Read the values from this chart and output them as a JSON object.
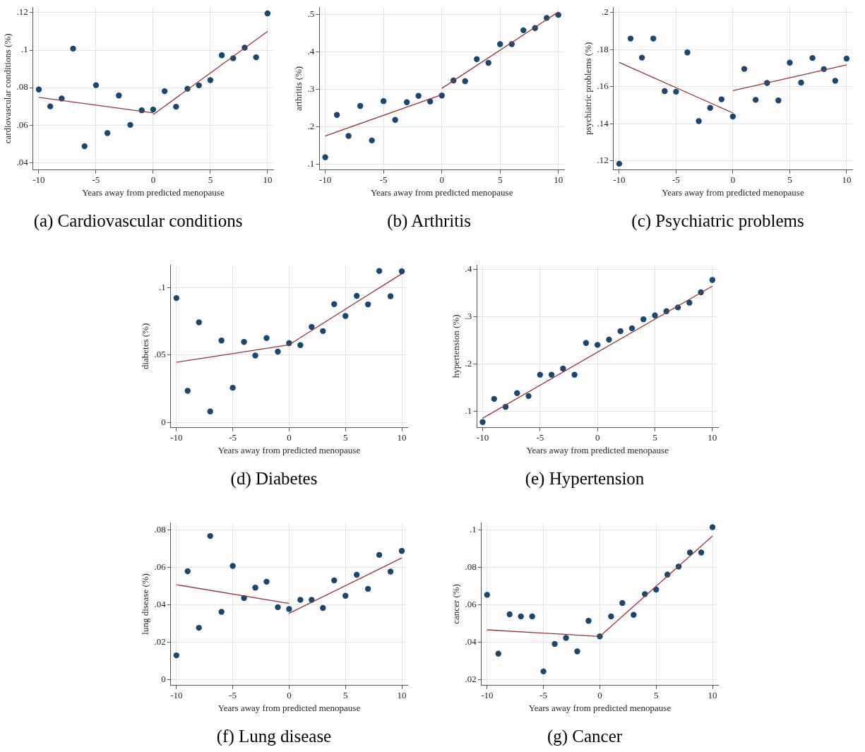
{
  "chart_data": [
    {
      "type": "scatter",
      "title": "(a) Cardiovascular conditions",
      "xlabel": "Years away from predicted menopause",
      "ylabel": "cardiovascular conditions (%)",
      "xlim": [
        -10.5,
        10.5
      ],
      "xticks": [
        -10,
        -5,
        0,
        5,
        10
      ],
      "ylim": [
        0.036,
        0.123
      ],
      "yticks": [
        {
          "value": 0.04,
          "label": ".04"
        },
        {
          "value": 0.06,
          "label": ".06"
        },
        {
          "value": 0.08,
          "label": ".08"
        },
        {
          "value": 0.1,
          "label": ".1"
        },
        {
          "value": 0.12,
          "label": ".12"
        }
      ],
      "grid": true,
      "marker": "circle",
      "series": [
        {
          "color": "#1a476f",
          "x": [
            -10,
            -9,
            -8,
            -7,
            -6,
            -5,
            -4,
            -3,
            -2,
            -1,
            0,
            1,
            2,
            3,
            4,
            5,
            6,
            7,
            8,
            9,
            10
          ],
          "values": [
            0.079,
            0.07,
            0.0742,
            0.1008,
            0.0487,
            0.0813,
            0.0557,
            0.0758,
            0.0601,
            0.0679,
            0.0683,
            0.0781,
            0.0698,
            0.0794,
            0.0812,
            0.084,
            0.0973,
            0.0957,
            0.1013,
            0.0962,
            0.1196
          ]
        },
        {
          "type": "line",
          "marker": "none",
          "color": "#90353b",
          "x": [
            -10,
            0
          ],
          "values": [
            0.0748,
            0.0665
          ]
        },
        {
          "type": "line",
          "marker": "none",
          "color": "#90353b",
          "x": [
            0,
            10
          ],
          "values": [
            0.0656,
            0.11
          ]
        }
      ]
    },
    {
      "type": "scatter",
      "title": "(b) Arthritis",
      "xlabel": "Years away from predicted menopause",
      "ylabel": "arthritis (%)",
      "xlim": [
        -10.5,
        10.5
      ],
      "xticks": [
        -10,
        -5,
        0,
        5,
        10
      ],
      "ylim": [
        0.085,
        0.52
      ],
      "yticks": [
        {
          "value": 0.1,
          "label": ".1"
        },
        {
          "value": 0.2,
          "label": ".2"
        },
        {
          "value": 0.3,
          "label": ".3"
        },
        {
          "value": 0.4,
          "label": ".4"
        },
        {
          "value": 0.5,
          "label": ".5"
        }
      ],
      "grid": true,
      "marker": "circle",
      "series": [
        {
          "color": "#1a476f",
          "x": [
            -10,
            -9,
            -8,
            -7,
            -6,
            -5,
            -4,
            -3,
            -2,
            -1,
            0,
            1,
            2,
            3,
            4,
            5,
            6,
            7,
            8,
            9,
            10
          ],
          "values": [
            0.119,
            0.232,
            0.176,
            0.256,
            0.164,
            0.269,
            0.219,
            0.266,
            0.283,
            0.268,
            0.284,
            0.324,
            0.322,
            0.381,
            0.371,
            0.421,
            0.421,
            0.458,
            0.464,
            0.491,
            0.499
          ]
        },
        {
          "type": "line",
          "marker": "none",
          "color": "#90353b",
          "x": [
            -10,
            0
          ],
          "values": [
            0.176,
            0.286
          ]
        },
        {
          "type": "line",
          "marker": "none",
          "color": "#90353b",
          "x": [
            0,
            10
          ],
          "values": [
            0.303,
            0.507
          ]
        }
      ]
    },
    {
      "type": "scatter",
      "title": "(c) Psychiatric problems",
      "xlabel": "Years away from predicted menopause",
      "ylabel": "psychiatric problems (%)",
      "xlim": [
        -10.5,
        10.5
      ],
      "xticks": [
        -10,
        -5,
        0,
        5,
        10
      ],
      "ylim": [
        0.115,
        0.203
      ],
      "yticks": [
        {
          "value": 0.12,
          "label": ".12"
        },
        {
          "value": 0.14,
          "label": ".14"
        },
        {
          "value": 0.16,
          "label": ".16"
        },
        {
          "value": 0.18,
          "label": ".18"
        },
        {
          "value": 0.2,
          "label": ".2"
        }
      ],
      "grid": true,
      "marker": "circle",
      "series": [
        {
          "color": "#1a476f",
          "x": [
            -10,
            -9,
            -8,
            -7,
            -6,
            -5,
            -4,
            -3,
            -2,
            -1,
            0,
            1,
            2,
            3,
            4,
            5,
            6,
            7,
            8,
            9,
            10
          ],
          "values": [
            0.1184,
            0.186,
            0.1757,
            0.186,
            0.1576,
            0.1573,
            0.1785,
            0.1414,
            0.1486,
            0.1532,
            0.1439,
            0.1696,
            0.1529,
            0.162,
            0.1526,
            0.173,
            0.1622,
            0.1755,
            0.1695,
            0.1632,
            0.1752
          ]
        },
        {
          "type": "line",
          "marker": "none",
          "color": "#90353b",
          "x": [
            -10,
            0
          ],
          "values": [
            0.1731,
            0.1458
          ]
        },
        {
          "type": "line",
          "marker": "none",
          "color": "#90353b",
          "x": [
            0,
            10
          ],
          "values": [
            0.1579,
            0.1718
          ]
        }
      ]
    },
    {
      "type": "scatter",
      "title": "(d) Diabetes",
      "xlabel": "Years away from predicted menopause",
      "ylabel": "diabetes (%)",
      "xlim": [
        -10.5,
        10.5
      ],
      "xticks": [
        -10,
        -5,
        0,
        5,
        10
      ],
      "ylim": [
        -0.004,
        0.117
      ],
      "yticks": [
        {
          "value": 0,
          "label": "0"
        },
        {
          "value": 0.05,
          "label": ".05"
        },
        {
          "value": 0.1,
          "label": ".1"
        }
      ],
      "grid": true,
      "marker": "circle",
      "series": [
        {
          "color": "#1a476f",
          "x": [
            -10,
            -9,
            -8,
            -7,
            -6,
            -5,
            -4,
            -3,
            -2,
            -1,
            0,
            1,
            2,
            3,
            4,
            5,
            6,
            7,
            8,
            9,
            10
          ],
          "values": [
            0.0923,
            0.0234,
            0.0743,
            0.0081,
            0.0608,
            0.0257,
            0.0597,
            0.0496,
            0.0626,
            0.0525,
            0.0588,
            0.0574,
            0.0709,
            0.0678,
            0.0878,
            0.079,
            0.0939,
            0.0876,
            0.1124,
            0.0937,
            0.1122
          ]
        },
        {
          "type": "line",
          "marker": "none",
          "color": "#90353b",
          "x": [
            -10,
            0
          ],
          "values": [
            0.0446,
            0.0576
          ]
        },
        {
          "type": "line",
          "marker": "none",
          "color": "#90353b",
          "x": [
            0,
            10
          ],
          "values": [
            0.0576,
            0.1104
          ]
        }
      ]
    },
    {
      "type": "scatter",
      "title": "(e) Hypertension",
      "xlabel": "Years away from predicted menopause",
      "ylabel": "hypertension (%)",
      "xlim": [
        -10.5,
        10.5
      ],
      "xticks": [
        -10,
        -5,
        0,
        5,
        10
      ],
      "ylim": [
        0.066,
        0.41
      ],
      "yticks": [
        {
          "value": 0.1,
          "label": ".1"
        },
        {
          "value": 0.2,
          "label": ".2"
        },
        {
          "value": 0.3,
          "label": ".3"
        },
        {
          "value": 0.4,
          "label": ".4"
        }
      ],
      "grid": true,
      "marker": "circle",
      "series": [
        {
          "color": "#1a476f",
          "x": [
            -10,
            -9,
            -8,
            -7,
            -6,
            -5,
            -4,
            -3,
            -2,
            -1,
            0,
            1,
            2,
            3,
            4,
            5,
            6,
            7,
            8,
            9,
            10
          ],
          "values": [
            0.078,
            0.127,
            0.11,
            0.139,
            0.133,
            0.178,
            0.178,
            0.191,
            0.178,
            0.245,
            0.241,
            0.252,
            0.27,
            0.276,
            0.295,
            0.303,
            0.312,
            0.32,
            0.33,
            0.352,
            0.378
          ]
        },
        {
          "type": "line",
          "marker": "none",
          "color": "#90353b",
          "x": [
            -10,
            10
          ],
          "values": [
            0.086,
            0.365
          ]
        }
      ]
    },
    {
      "type": "scatter",
      "title": "(f) Lung disease",
      "xlabel": "Years away from predicted menopause",
      "ylabel": "lung disease (%)",
      "xlim": [
        -10.5,
        10.5
      ],
      "xticks": [
        -10,
        -5,
        0,
        5,
        10
      ],
      "ylim": [
        -0.003,
        0.084
      ],
      "yticks": [
        {
          "value": 0,
          "label": "0"
        },
        {
          "value": 0.02,
          "label": ".02"
        },
        {
          "value": 0.04,
          "label": ".04"
        },
        {
          "value": 0.06,
          "label": ".06"
        },
        {
          "value": 0.08,
          "label": ".08"
        }
      ],
      "grid": true,
      "marker": "circle",
      "series": [
        {
          "color": "#1a476f",
          "x": [
            -10,
            -9,
            -8,
            -7,
            -6,
            -5,
            -4,
            -3,
            -2,
            -1,
            0,
            1,
            2,
            3,
            4,
            5,
            6,
            7,
            8,
            9,
            10
          ],
          "values": [
            0.0131,
            0.058,
            0.0278,
            0.0768,
            0.0363,
            0.0608,
            0.0437,
            0.0492,
            0.0524,
            0.0388,
            0.0378,
            0.0427,
            0.0427,
            0.0384,
            0.0531,
            0.0449,
            0.0561,
            0.0486,
            0.0667,
            0.0578,
            0.0688
          ]
        },
        {
          "type": "line",
          "marker": "none",
          "color": "#90353b",
          "x": [
            -10,
            0
          ],
          "values": [
            0.0508,
            0.0408
          ]
        },
        {
          "type": "line",
          "marker": "none",
          "color": "#90353b",
          "x": [
            0,
            10
          ],
          "values": [
            0.0355,
            0.0651
          ]
        }
      ]
    },
    {
      "type": "scatter",
      "title": "(g) Cancer",
      "xlabel": "Years away from predicted menopause",
      "ylabel": "cancer (%)",
      "xlim": [
        -10.5,
        10.5
      ],
      "xticks": [
        -10,
        -5,
        0,
        5,
        10
      ],
      "ylim": [
        0.017,
        0.104
      ],
      "yticks": [
        {
          "value": 0.02,
          "label": ".02"
        },
        {
          "value": 0.04,
          "label": ".04"
        },
        {
          "value": 0.06,
          "label": ".06"
        },
        {
          "value": 0.08,
          "label": ".08"
        },
        {
          "value": 0.1,
          "label": ".1"
        }
      ],
      "grid": true,
      "marker": "circle",
      "series": [
        {
          "color": "#1a476f",
          "x": [
            -10,
            -9,
            -8,
            -7,
            -6,
            -5,
            -4,
            -3,
            -2,
            -1,
            0,
            1,
            2,
            3,
            4,
            5,
            6,
            7,
            8,
            9,
            10
          ],
          "values": [
            0.0654,
            0.034,
            0.055,
            0.0539,
            0.0539,
            0.0245,
            0.0392,
            0.0424,
            0.0352,
            0.0515,
            0.0432,
            0.0539,
            0.061,
            0.0547,
            0.0658,
            0.0682,
            0.0762,
            0.0805,
            0.088,
            0.088,
            0.1015
          ]
        },
        {
          "type": "line",
          "marker": "none",
          "color": "#90353b",
          "x": [
            -10,
            0
          ],
          "values": [
            0.0467,
            0.0432
          ]
        },
        {
          "type": "line",
          "marker": "none",
          "color": "#90353b",
          "x": [
            0,
            10
          ],
          "values": [
            0.0432,
            0.0968
          ]
        }
      ]
    }
  ]
}
